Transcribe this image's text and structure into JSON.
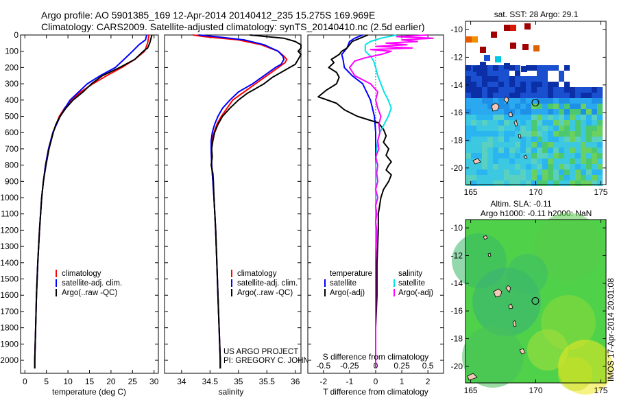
{
  "header": {
    "line1": "Argo profile: AO 5901385_169 12-Apr-2014 20140412_235 15.275S 169.969E",
    "line2": "Climatology: CARS2009. Satellite-adjusted climatology: synTS_20140410.nc (2.5d earlier)"
  },
  "credit": {
    "line1": "US ARGO PROJECT",
    "line2": "PI: GREGORY C. JOHNSON"
  },
  "timestamp": "IMOS 17-Apr-2014 20:01:08",
  "colors": {
    "climatology": "#ff0000",
    "satellite": "#0000ff",
    "argo": "#000000",
    "satellite_diff_salinity": "#00e5e5",
    "argo_diff_salinity": "#ff00ff"
  },
  "chart_data": [
    {
      "type": "line",
      "panel": "temperature",
      "xlabel": "temperature (deg C)",
      "ylim": [
        2080,
        0
      ],
      "xlim": [
        -1,
        31
      ],
      "xticks": [
        0,
        5,
        10,
        15,
        20,
        25,
        30
      ],
      "yticks": [
        0,
        100,
        200,
        300,
        400,
        500,
        600,
        700,
        800,
        900,
        1000,
        1100,
        1200,
        1300,
        1400,
        1500,
        1600,
        1700,
        1800,
        1900,
        2000
      ],
      "legend": [
        "climatology",
        "satellite-adj. clim.",
        "Argo(..raw -QC)"
      ],
      "legend_location": "lower-center",
      "series": [
        {
          "name": "climatology",
          "color": "#ff0000",
          "depth": [
            0,
            50,
            100,
            150,
            200,
            250,
            300,
            350,
            400,
            450,
            500,
            600,
            700,
            800,
            900,
            1000,
            1200,
            1400,
            1600,
            1800,
            2000,
            2050
          ],
          "values": [
            28.8,
            28.5,
            27.8,
            25.5,
            22.5,
            19.0,
            15.8,
            13.0,
            10.8,
            9.2,
            8.0,
            6.5,
            5.5,
            4.8,
            4.3,
            3.9,
            3.4,
            3.0,
            2.7,
            2.5,
            2.3,
            2.3
          ]
        },
        {
          "name": "satellite-adj. clim.",
          "color": "#0000ff",
          "depth": [
            0,
            30,
            60,
            100,
            150,
            200,
            250,
            300,
            350,
            400,
            450,
            500,
            600,
            700,
            800,
            900,
            1000,
            1200,
            1400,
            1600,
            1800,
            2000,
            2050
          ],
          "values": [
            28.3,
            28.0,
            26.5,
            25.0,
            23.0,
            21.0,
            17.5,
            14.5,
            12.5,
            10.5,
            9.3,
            8.2,
            6.5,
            5.5,
            4.8,
            4.3,
            3.9,
            3.4,
            3.0,
            2.7,
            2.5,
            2.3,
            2.3
          ]
        },
        {
          "name": "Argo(..raw -QC)",
          "color": "#000000",
          "depth": [
            0,
            20,
            50,
            80,
            100,
            150,
            200,
            250,
            300,
            350,
            400,
            450,
            500,
            550,
            600,
            700,
            800,
            900,
            1000,
            1200,
            1400,
            1600,
            1800,
            2000,
            2050
          ],
          "values": [
            29.5,
            29.3,
            29.0,
            28.5,
            27.5,
            25.5,
            22.0,
            18.0,
            15.5,
            13.5,
            11.2,
            9.5,
            8.2,
            7.2,
            6.6,
            5.6,
            4.9,
            4.3,
            3.9,
            3.4,
            3.0,
            2.7,
            2.5,
            2.3,
            2.3
          ]
        }
      ]
    },
    {
      "type": "line",
      "panel": "salinity",
      "xlabel": "salinity",
      "ylim": [
        2080,
        0
      ],
      "xlim": [
        33.7,
        36.1
      ],
      "xticks": [
        34,
        34.5,
        35,
        35.5,
        36
      ],
      "legend": [
        "climatology",
        "satellite-adj. clim.",
        "Argo(..raw -QC)"
      ],
      "legend_location": "lower-center",
      "series": [
        {
          "name": "climatology",
          "color": "#ff0000",
          "depth": [
            0,
            10,
            30,
            60,
            100,
            130,
            150,
            170,
            200,
            250,
            300,
            350,
            400,
            450,
            500,
            550,
            600,
            650,
            700,
            800,
            900,
            1000,
            1200,
            1400,
            1600,
            1800,
            2000,
            2050
          ],
          "values": [
            34.2,
            34.4,
            35.0,
            35.4,
            35.7,
            35.8,
            35.85,
            35.82,
            35.7,
            35.5,
            35.3,
            35.1,
            34.9,
            34.8,
            34.7,
            34.62,
            34.57,
            34.53,
            34.52,
            34.53,
            34.55,
            34.57,
            34.6,
            34.62,
            34.64,
            34.66,
            34.68,
            34.68
          ]
        },
        {
          "name": "satellite-adj. clim.",
          "color": "#0000ff",
          "depth": [
            0,
            10,
            30,
            60,
            100,
            130,
            150,
            180,
            200,
            250,
            300,
            350,
            400,
            450,
            500,
            550,
            600,
            650,
            700,
            800,
            900,
            1000,
            1200,
            1400,
            1600,
            1800,
            2000,
            2050
          ],
          "values": [
            34.3,
            34.6,
            35.1,
            35.45,
            35.7,
            35.78,
            35.8,
            35.75,
            35.65,
            35.45,
            35.25,
            35.0,
            34.85,
            34.72,
            34.64,
            34.58,
            34.54,
            34.52,
            34.52,
            34.53,
            34.55,
            34.57,
            34.6,
            34.62,
            34.64,
            34.66,
            34.68,
            34.68
          ]
        },
        {
          "name": "Argo(..raw -QC)",
          "color": "#000000",
          "depth": [
            0,
            20,
            40,
            60,
            80,
            100,
            120,
            150,
            180,
            200,
            230,
            260,
            300,
            330,
            360,
            400,
            450,
            500,
            550,
            600,
            650,
            700,
            750,
            800,
            850,
            900,
            1000,
            1200,
            1400,
            1600,
            1800,
            2000,
            2050
          ],
          "values": [
            35.2,
            35.8,
            36.0,
            36.1,
            36.1,
            36.05,
            36.1,
            36.05,
            36.0,
            35.9,
            35.75,
            35.6,
            35.45,
            35.3,
            35.15,
            35.0,
            34.85,
            34.72,
            34.64,
            34.58,
            34.55,
            34.53,
            34.54,
            34.52,
            34.55,
            34.56,
            34.57,
            34.6,
            34.62,
            34.64,
            34.66,
            34.68,
            34.68
          ]
        }
      ]
    },
    {
      "type": "line",
      "panel": "difference",
      "xlabel": "T difference from climatology",
      "x2label": "S difference from climatology",
      "ylim": [
        2080,
        0
      ],
      "xlim": [
        -2.6,
        2.6
      ],
      "xticks": [
        -2,
        -1,
        0,
        1,
        2
      ],
      "x2ticks": [
        -0.5,
        -0.25,
        0,
        0.25,
        0.5
      ],
      "legend_temperature": [
        "temperature",
        "satellite",
        "Argo(-adj)"
      ],
      "legend_salinity": [
        "salinity",
        "satellite",
        "Argo(-adj)"
      ],
      "legend_location": "lower-center",
      "series": [
        {
          "name": "satellite",
          "quantity": "temperature",
          "color": "#0000ff",
          "depth": [
            0,
            20,
            40,
            60,
            80,
            100,
            120,
            150,
            200,
            250,
            300,
            400,
            500,
            600,
            700,
            800,
            1000,
            1200,
            1400,
            1600,
            1800,
            2000,
            2050
          ],
          "t_diff": [
            -0.5,
            -0.8,
            -1.0,
            -1.05,
            -1.1,
            -1.2,
            -1.3,
            -1.25,
            -1.2,
            -0.9,
            -0.5,
            -0.2,
            -0.05,
            0,
            0,
            0,
            0,
            0,
            0,
            0,
            0,
            0,
            0
          ]
        },
        {
          "name": "Argo(-adj)",
          "quantity": "temperature",
          "color": "#000000",
          "depth": [
            0,
            20,
            40,
            60,
            80,
            100,
            120,
            150,
            170,
            200,
            230,
            260,
            300,
            340,
            380,
            420,
            460,
            500,
            540,
            580,
            620,
            660,
            700,
            740,
            780,
            800,
            830,
            860,
            900,
            950,
            1000,
            1100,
            1200,
            1400,
            1600,
            1800,
            2000,
            2050
          ],
          "t_diff": [
            -0.3,
            -0.6,
            -0.9,
            -1.0,
            -1.1,
            -1.3,
            -1.4,
            -1.7,
            -1.6,
            -1.8,
            -1.5,
            -1.4,
            -1.5,
            -1.9,
            -2.2,
            -1.5,
            -1.2,
            -0.7,
            0.1,
            0.3,
            0.4,
            0.3,
            0.5,
            0.4,
            0.6,
            0.5,
            0.4,
            0.6,
            0.5,
            0.3,
            0.2,
            0.1,
            0.1,
            0.05,
            0.05,
            0,
            0,
            0
          ]
        },
        {
          "name": "satellite",
          "quantity": "salinity",
          "color": "#00e5e5",
          "depth": [
            0,
            20,
            40,
            60,
            80,
            100,
            130,
            160,
            200,
            250,
            300,
            350,
            400,
            450,
            500,
            550,
            600,
            650,
            700,
            800,
            900,
            1000,
            1200,
            1400,
            1600,
            1800,
            2000,
            2050
          ],
          "s_diff": [
            0.2,
            0.05,
            -0.05,
            -0.1,
            -0.1,
            -0.1,
            -0.05,
            -0.02,
            0.0,
            0.02,
            0.05,
            0.08,
            0.12,
            0.15,
            0.12,
            0.08,
            0.04,
            0.02,
            0.01,
            0.0,
            0.0,
            0.0,
            0.0,
            0.0,
            0.0,
            0.0,
            0.0,
            0.0
          ]
        },
        {
          "name": "Argo(-adj)",
          "quantity": "salinity",
          "color": "#ff00ff",
          "depth": [
            0,
            10,
            20,
            30,
            40,
            50,
            60,
            70,
            80,
            90,
            100,
            120,
            140,
            160,
            200,
            250,
            300,
            350,
            400,
            450,
            500,
            550,
            600,
            650,
            700,
            750,
            800,
            850,
            900,
            950,
            1000,
            1050,
            1100,
            1150,
            1200,
            1400,
            1600,
            1800,
            2000,
            2050
          ],
          "s_diff": [
            0.5,
            0.2,
            0.55,
            0.25,
            0.4,
            0.1,
            0.3,
            0.0,
            0.35,
            -0.05,
            0.15,
            0.05,
            -0.1,
            -0.2,
            -0.25,
            -0.2,
            -0.05,
            0.02,
            0.0,
            0.02,
            0.05,
            0.03,
            0.04,
            0.02,
            0.03,
            0.0,
            0.02,
            0.01,
            0.02,
            0.0,
            0.02,
            0.0,
            0.01,
            0.0,
            0.01,
            0.0,
            0.0,
            0.0,
            0.0,
            0.0
          ]
        }
      ]
    },
    {
      "type": "heatmap",
      "panel": "sst-map",
      "title": "sat. SST: 28 Argo: 29.1",
      "xticks": [
        165,
        170,
        175
      ],
      "yticks": [
        -10,
        -12,
        -14,
        -16,
        -18,
        -20
      ],
      "xlim": [
        164.6,
        175.4
      ],
      "ylim": [
        -21.2,
        -9.4
      ],
      "argo_position": {
        "lon": 169.969,
        "lat": -15.275
      }
    },
    {
      "type": "heatmap",
      "panel": "sla-map",
      "title_line1": "Altim. SLA: -0.11",
      "title_line2": "Argo h1000: -0.11 h2000: NaN",
      "xticks": [
        165,
        170,
        175
      ],
      "yticks": [
        -10,
        -12,
        -14,
        -16,
        -18,
        -20
      ],
      "xlim": [
        164.6,
        175.4
      ],
      "ylim": [
        -21.2,
        -9.4
      ],
      "argo_position": {
        "lon": 169.969,
        "lat": -15.275
      }
    }
  ]
}
